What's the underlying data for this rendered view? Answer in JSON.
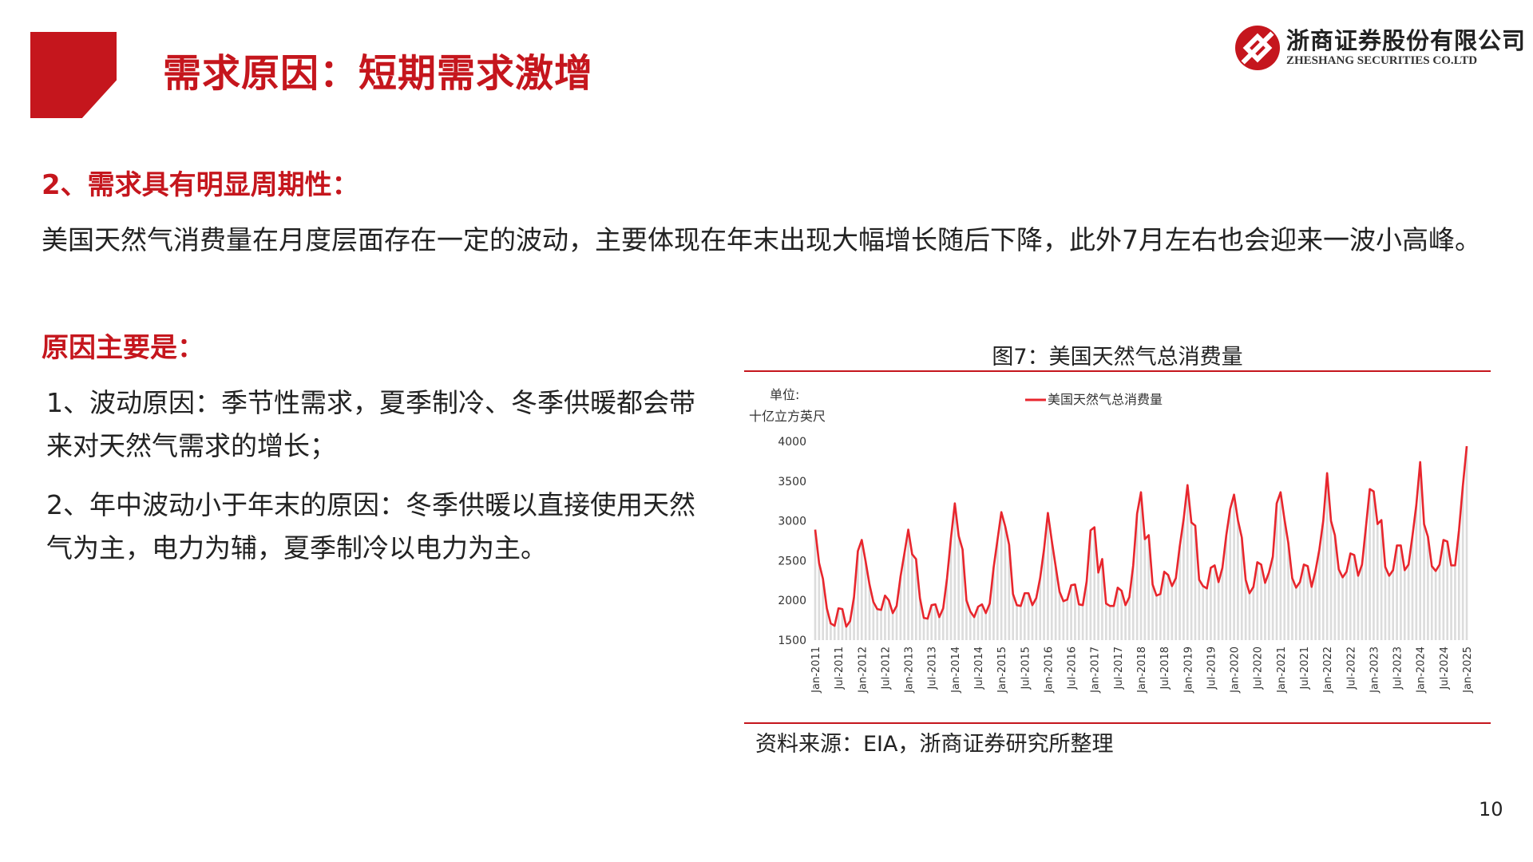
{
  "header": {
    "title": "需求原因：短期需求激增"
  },
  "logo": {
    "name_cn": "浙商证券股份有限公司",
    "name_en": "ZHESHANG SECURITIES CO.LTD"
  },
  "section1": {
    "title": "2、需求具有明显周期性：",
    "paragraph": "美国天然气消费量在月度层面存在一定的波动，主要体现在年末出现大幅增长随后下降，此外7月左右也会迎来一波小高峰。"
  },
  "section2": {
    "title": "原因主要是：",
    "points": [
      "1、波动原因：季节性需求，夏季制冷、冬季供暖都会带来对天然气需求的增长；",
      "2、年中波动小于年末的原因：冬季供暖以直接使用天然气为主，电力为辅，夏季制冷以电力为主。"
    ]
  },
  "chart": {
    "caption": "图7：美国天然气总消费量",
    "source": "资料来源：EIA，浙商证券研究所整理"
  },
  "chart_data": {
    "type": "line",
    "title": "",
    "ylabel": "单位：十亿立方英尺",
    "ylabel_lines": [
      "单位:",
      "十亿立方英尺"
    ],
    "xlabel": "",
    "ylim": [
      1500,
      4000
    ],
    "yticks": [
      1500,
      2000,
      2500,
      3000,
      3500,
      4000
    ],
    "xticks": [
      "Jan-2011",
      "Jul-2011",
      "Jan-2012",
      "Jul-2012",
      "Jan-2013",
      "Jul-2013",
      "Jan-2014",
      "Jul-2014",
      "Jan-2015",
      "Jul-2015",
      "Jan-2016",
      "Jul-2016",
      "Jan-2017",
      "Jul-2017",
      "Jan-2018",
      "Jul-2018",
      "Jan-2019",
      "Jul-2019",
      "Jan-2020",
      "Jul-2020",
      "Jan-2021",
      "Jul-2021",
      "Jan-2022",
      "Jul-2022",
      "Jan-2023",
      "Jul-2023",
      "Jan-2024",
      "Jul-2024",
      "Jan-2025"
    ],
    "legend": "top-center",
    "grid": false,
    "series_color": "#e8262d",
    "bar_color": "#dcdcdc",
    "x_start": "Jan-2011",
    "x_end": "Jan-2025",
    "series": [
      {
        "name": "美国天然气总消费量",
        "values": [
          2890,
          2470,
          2270,
          1900,
          1710,
          1680,
          1900,
          1890,
          1670,
          1740,
          2040,
          2620,
          2760,
          2490,
          2200,
          1980,
          1890,
          1880,
          2060,
          2000,
          1840,
          1930,
          2300,
          2590,
          2890,
          2580,
          2520,
          2030,
          1780,
          1770,
          1940,
          1950,
          1790,
          1900,
          2280,
          2780,
          3220,
          2810,
          2640,
          2000,
          1860,
          1790,
          1920,
          1950,
          1840,
          1960,
          2410,
          2760,
          3110,
          2930,
          2700,
          2080,
          1940,
          1930,
          2090,
          2090,
          1940,
          2030,
          2280,
          2640,
          3100,
          2750,
          2430,
          2110,
          1990,
          2010,
          2190,
          2200,
          1950,
          1940,
          2240,
          2880,
          2920,
          2350,
          2520,
          1960,
          1930,
          1930,
          2160,
          2120,
          1940,
          2040,
          2440,
          3090,
          3360,
          2770,
          2820,
          2200,
          2060,
          2080,
          2360,
          2320,
          2180,
          2280,
          2680,
          3020,
          3450,
          2980,
          2940,
          2260,
          2180,
          2150,
          2410,
          2440,
          2230,
          2410,
          2820,
          3150,
          3330,
          3010,
          2790,
          2260,
          2090,
          2170,
          2480,
          2450,
          2220,
          2350,
          2550,
          3220,
          3360,
          3020,
          2720,
          2280,
          2160,
          2230,
          2450,
          2430,
          2170,
          2370,
          2640,
          3000,
          3600,
          3000,
          2820,
          2390,
          2290,
          2360,
          2590,
          2570,
          2310,
          2450,
          2920,
          3400,
          3370,
          2960,
          3010,
          2420,
          2310,
          2380,
          2690,
          2690,
          2380,
          2450,
          2810,
          3200,
          3740,
          2960,
          2800,
          2430,
          2370,
          2450,
          2760,
          2740,
          2440,
          2440,
          2880,
          3440,
          3940
        ]
      }
    ]
  }
}
